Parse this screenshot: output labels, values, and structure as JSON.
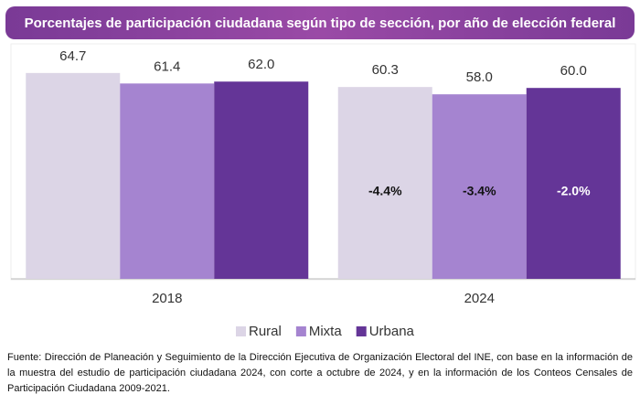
{
  "chart_data": {
    "type": "bar",
    "title": "Porcentajes de participación ciudadana según tipo de sección, por año de elección federal",
    "categories": [
      "2018",
      "2024"
    ],
    "series": [
      {
        "name": "Rural",
        "color": "#dcd5e6",
        "values": [
          64.7,
          60.3
        ],
        "value_labels": [
          "64.7",
          "60.3"
        ]
      },
      {
        "name": "Mixta",
        "color": "#a584d0",
        "values": [
          61.4,
          58.0
        ],
        "value_labels": [
          "61.4",
          "58.0"
        ]
      },
      {
        "name": "Urbana",
        "color": "#643597",
        "values": [
          62.0,
          60.0
        ],
        "value_labels": [
          "62.0",
          "60.0"
        ]
      }
    ],
    "change_labels": [
      "-4.4%",
      "-3.4%",
      "-2.0%"
    ],
    "ylim": [
      0,
      75
    ],
    "source": "Fuente: Dirección de Planeación y Seguimiento de la Dirección Ejecutiva de Organización Electoral del INE, con base en la información de la muestra del estudio de participación ciudadana 2024, con corte a octubre de 2024, y en la información de los Conteos Censales de Participación Ciudadana 2009-2021."
  }
}
